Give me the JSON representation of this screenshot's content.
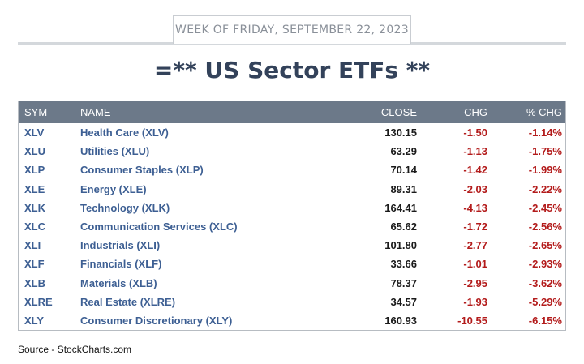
{
  "week_label": "WEEK OF FRIDAY, SEPTEMBER 22, 2023",
  "title": "=** US Sector ETFs **",
  "columns": [
    "SYM",
    "NAME",
    "CLOSE",
    "CHG",
    "% CHG"
  ],
  "rows": [
    {
      "sym": "XLV",
      "name": "Health Care (XLV)",
      "close": "130.15",
      "chg": "-1.50",
      "pct": "-1.14%"
    },
    {
      "sym": "XLU",
      "name": "Utilities (XLU)",
      "close": "63.29",
      "chg": "-1.13",
      "pct": "-1.75%"
    },
    {
      "sym": "XLP",
      "name": "Consumer Staples (XLP)",
      "close": "70.14",
      "chg": "-1.42",
      "pct": "-1.99%"
    },
    {
      "sym": "XLE",
      "name": "Energy (XLE)",
      "close": "89.31",
      "chg": "-2.03",
      "pct": "-2.22%"
    },
    {
      "sym": "XLK",
      "name": "Technology (XLK)",
      "close": "164.41",
      "chg": "-4.13",
      "pct": "-2.45%"
    },
    {
      "sym": "XLC",
      "name": "Communication Services (XLC)",
      "close": "65.62",
      "chg": "-1.72",
      "pct": "-2.56%"
    },
    {
      "sym": "XLI",
      "name": "Industrials (XLI)",
      "close": "101.80",
      "chg": "-2.77",
      "pct": "-2.65%"
    },
    {
      "sym": "XLF",
      "name": "Financials (XLF)",
      "close": "33.66",
      "chg": "-1.01",
      "pct": "-2.93%"
    },
    {
      "sym": "XLB",
      "name": "Materials (XLB)",
      "close": "78.37",
      "chg": "-2.95",
      "pct": "-3.62%"
    },
    {
      "sym": "XLRE",
      "name": "Real Estate (XLRE)",
      "close": "34.57",
      "chg": "-1.93",
      "pct": "-5.29%"
    },
    {
      "sym": "XLY",
      "name": "Consumer Discretionary (XLY)",
      "close": "160.93",
      "chg": "-10.55",
      "pct": "-6.15%"
    }
  ],
  "source": "Source - StockCharts.com"
}
